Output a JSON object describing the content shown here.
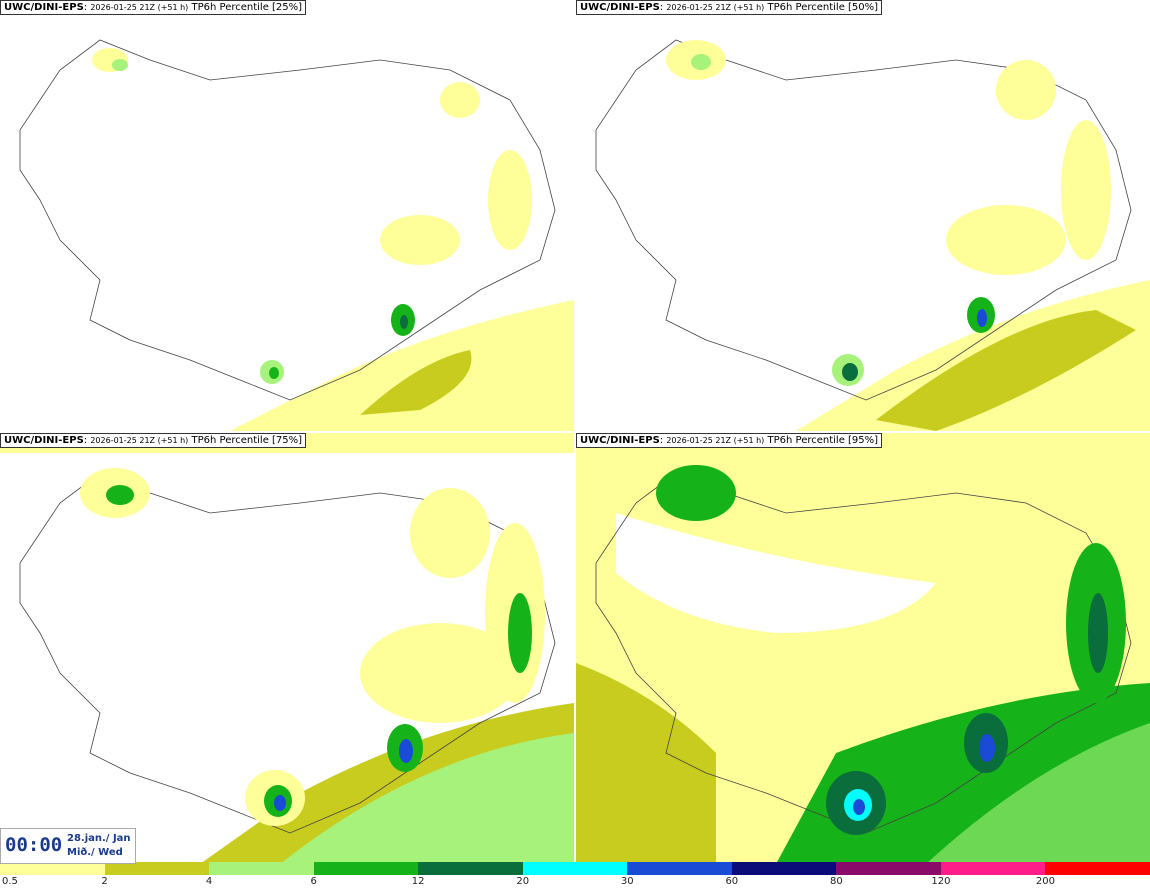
{
  "panels": [
    {
      "model": "UWC/DINI-EPS",
      "run": "2026-01-25 21Z (+51 h)",
      "field": "TP6h Percentile [25%]"
    },
    {
      "model": "UWC/DINI-EPS",
      "run": "2026-01-25 21Z (+51 h)",
      "field": "TP6h Percentile [50%]"
    },
    {
      "model": "UWC/DINI-EPS",
      "run": "2026-01-25 21Z (+51 h)",
      "field": "TP6h Percentile [75%]"
    },
    {
      "model": "UWC/DINI-EPS",
      "run": "2026-01-25 21Z (+51 h)",
      "field": "TP6h Percentile [95%]"
    }
  ],
  "valid_time": {
    "time": "00:00",
    "date_line1": "28.jan./ Jan",
    "date_line2": "Mið./ Wed"
  },
  "colorbar": {
    "labels": [
      "0.5",
      "2",
      "4",
      "6",
      "12",
      "20",
      "30",
      "60",
      "80",
      "120",
      "200"
    ],
    "colors": [
      "#ffff99",
      "#c8cc1f",
      "#a6f27a",
      "#16b21a",
      "#0a6e3c",
      "#00ffff",
      "#1a4bd6",
      "#0b0b7a",
      "#8a0a6a",
      "#ff1d8a",
      "#ff0000"
    ]
  }
}
